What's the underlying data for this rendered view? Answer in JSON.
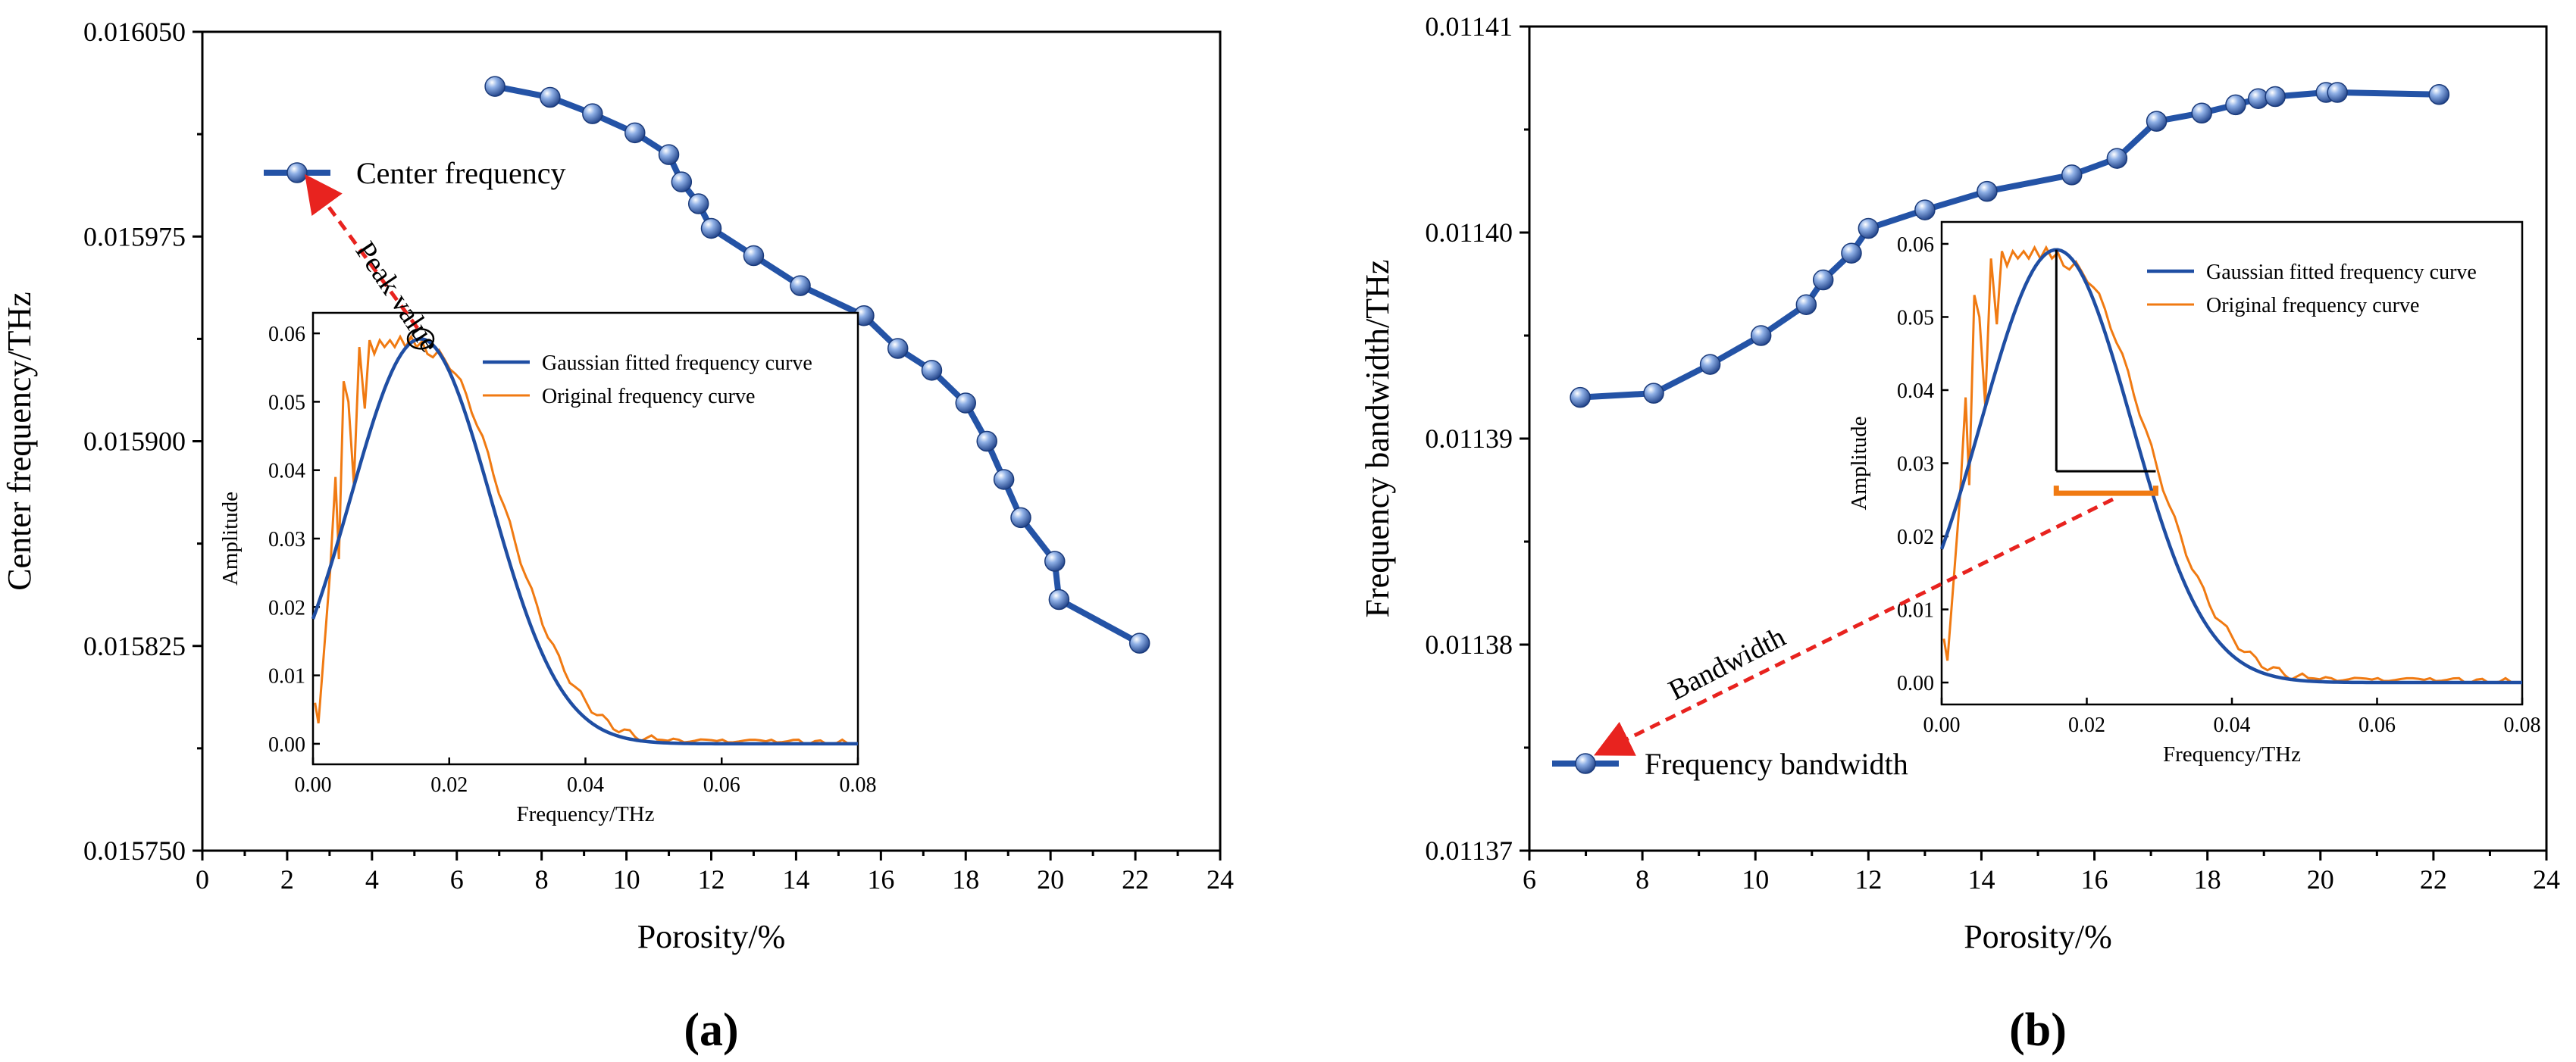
{
  "colors": {
    "main_series": "#2453a6",
    "gaussian": "#1f4ea3",
    "original": "#f07a12",
    "annotation": "#e8231f",
    "marker_light": "#dfe9f8"
  },
  "chart_data": [
    {
      "id": "a",
      "panel_label": "(a)",
      "type": "line",
      "xlabel": "Porosity/%",
      "ylabel": "Center frequency/THz",
      "xlim": [
        0,
        24
      ],
      "ylim": [
        0.01575,
        0.01605
      ],
      "xticks": [
        "0",
        "2",
        "4",
        "6",
        "8",
        "10",
        "12",
        "14",
        "16",
        "18",
        "20",
        "22",
        "24"
      ],
      "yticks": [
        "0.015750",
        "0.015825",
        "0.015900",
        "0.015975",
        "0.016050"
      ],
      "legend": "Center frequency",
      "annotation": "Peak value",
      "series": [
        {
          "name": "Center frequency",
          "x": [
            6.9,
            8.2,
            9.2,
            10.2,
            11.0,
            11.3,
            11.7,
            12.0,
            13.0,
            14.1,
            15.6,
            16.4,
            17.2,
            18.0,
            18.5,
            18.9,
            19.3,
            20.1,
            20.2,
            22.1
          ],
          "y": [
            0.01603,
            0.016026,
            0.01602,
            0.016013,
            0.016005,
            0.015995,
            0.015987,
            0.015978,
            0.015968,
            0.015957,
            0.015946,
            0.015934,
            0.015926,
            0.015914,
            0.0159,
            0.015886,
            0.015872,
            0.015856,
            0.015842,
            0.015826
          ]
        }
      ],
      "inset": {
        "xlabel": "Frequency/THz",
        "ylabel": "Amplitude",
        "xlim": [
          0,
          0.08
        ],
        "ylim": [
          -0.003,
          0.063
        ],
        "xticks": [
          "0.00",
          "0.02",
          "0.04",
          "0.06",
          "0.08"
        ],
        "yticks": [
          "0.00",
          "0.01",
          "0.02",
          "0.03",
          "0.04",
          "0.05",
          "0.06"
        ],
        "legend": [
          "Gaussian fitted frequency curve",
          "Original frequency curve"
        ]
      }
    },
    {
      "id": "b",
      "panel_label": "(b)",
      "type": "line",
      "xlabel": "Porosity/%",
      "ylabel": "Frequency bandwidth/THz",
      "xlim": [
        6,
        24
      ],
      "ylim": [
        0.01137,
        0.01141
      ],
      "xticks": [
        "6",
        "8",
        "10",
        "12",
        "14",
        "16",
        "18",
        "20",
        "22",
        "24"
      ],
      "yticks": [
        "0.01137",
        "0.01138",
        "0.01139",
        "0.01140",
        "0.01141"
      ],
      "legend": "Frequency bandwidth",
      "annotation": "Bandwidth",
      "series": [
        {
          "name": "Frequency bandwidth",
          "x": [
            6.9,
            8.2,
            9.2,
            10.1,
            10.9,
            11.2,
            11.7,
            12.0,
            13.0,
            14.1,
            15.6,
            16.4,
            17.1,
            17.9,
            18.5,
            18.9,
            19.2,
            20.1,
            20.3,
            22.1
          ],
          "y": [
            0.011392,
            0.0113922,
            0.0113936,
            0.011395,
            0.0113965,
            0.0113977,
            0.011399,
            0.0114002,
            0.0114011,
            0.011402,
            0.0114028,
            0.0114036,
            0.0114054,
            0.0114058,
            0.0114062,
            0.0114065,
            0.0114066,
            0.0114068,
            0.0114068,
            0.0114067
          ]
        }
      ],
      "inset": {
        "xlabel": "Frequency/THz",
        "ylabel": "Amplitude",
        "xlim": [
          0,
          0.08
        ],
        "ylim": [
          -0.003,
          0.063
        ],
        "xticks": [
          "0.00",
          "0.02",
          "0.04",
          "0.06",
          "0.08"
        ],
        "yticks": [
          "0.00",
          "0.01",
          "0.02",
          "0.03",
          "0.04",
          "0.05",
          "0.06"
        ],
        "legend": [
          "Gaussian fitted frequency curve",
          "Original frequency curve"
        ]
      }
    }
  ]
}
